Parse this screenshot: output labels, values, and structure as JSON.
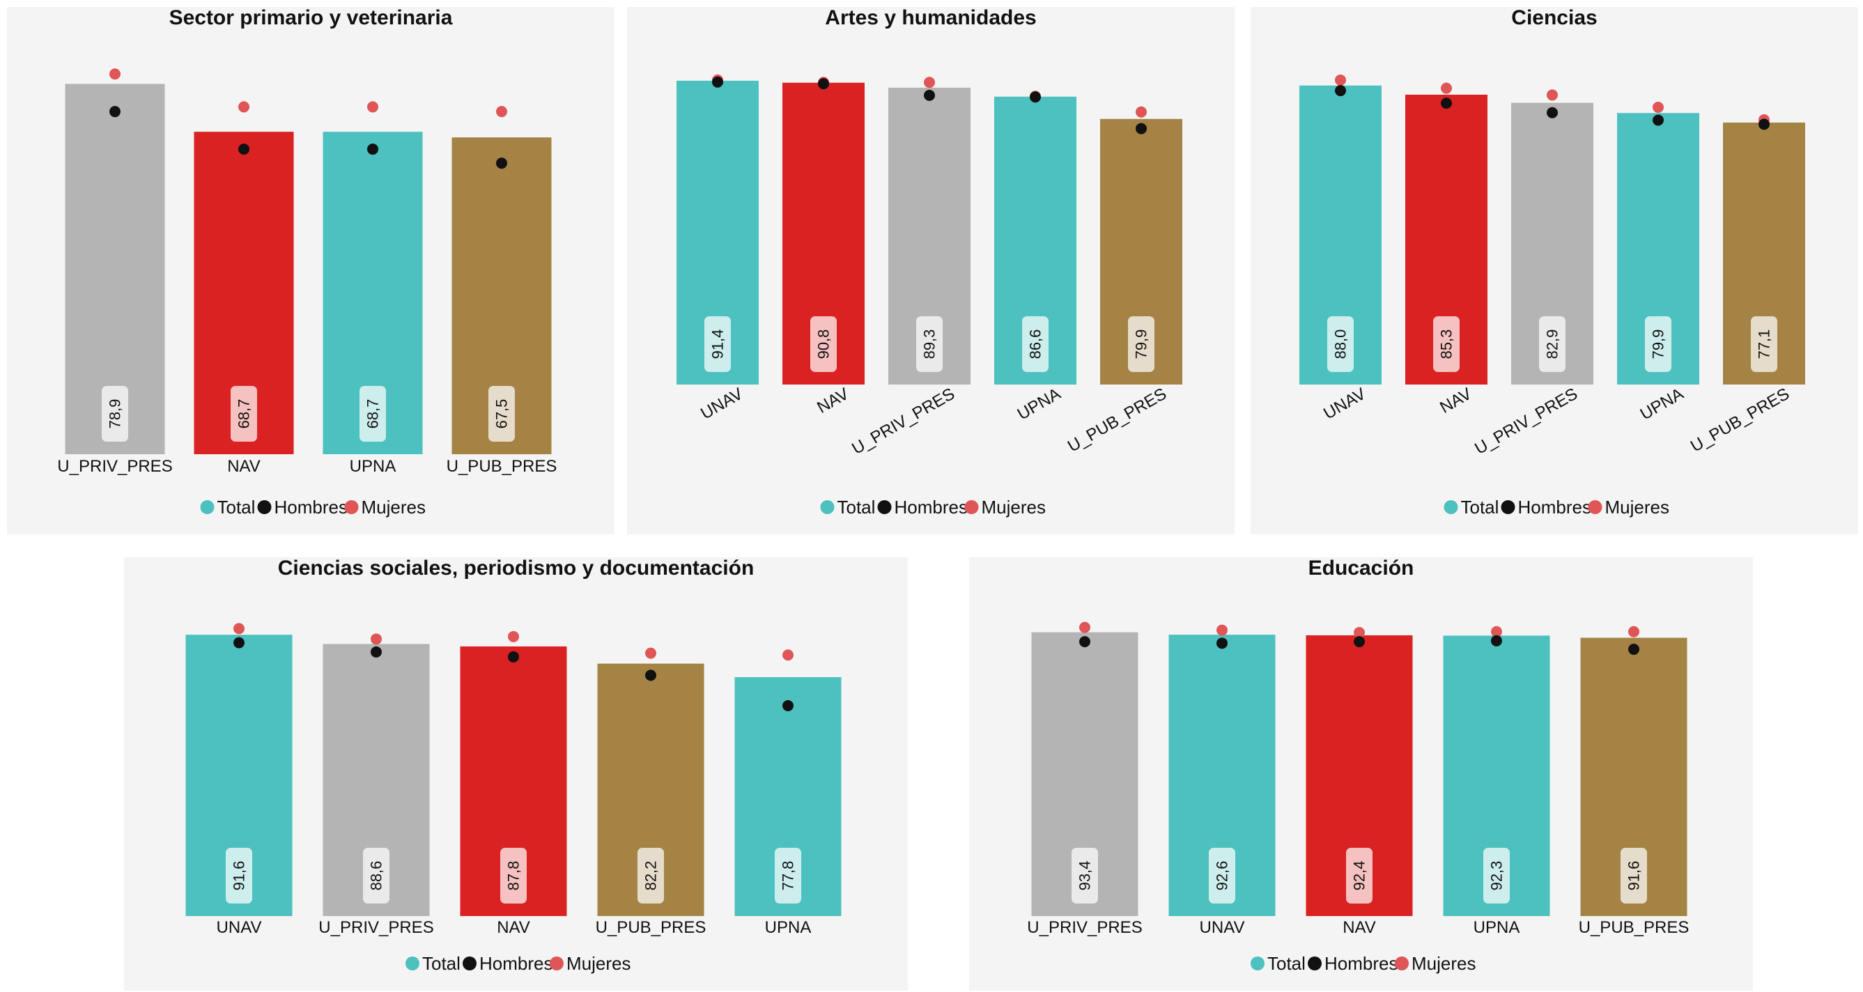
{
  "colors": {
    "panel_bg": "#f4f4f4",
    "teal": "#4dc1bf",
    "red": "#db2222",
    "gray": "#b4b4b4",
    "gold": "#a48344",
    "hombres_dot": "#111111",
    "mujeres_dot": "#e05555"
  },
  "legend": [
    {
      "label": "Total",
      "color": "#4dc1bf"
    },
    {
      "label": "Hombres",
      "color": "#111111"
    },
    {
      "label": "Mujeres",
      "color": "#e05555"
    }
  ],
  "chart_data": [
    {
      "type": "bar",
      "title": "Sector primario y veterinaria",
      "categories": [
        "U_PRIV_PRES",
        "NAV",
        "UPNA",
        "U_PUB_PRES"
      ],
      "bar_colors": [
        "#b4b4b4",
        "#db2222",
        "#4dc1bf",
        "#a48344"
      ],
      "rotated_ticks": false,
      "ylim": [
        0,
        80
      ],
      "series": [
        {
          "name": "Total",
          "values": [
            78.9,
            68.7,
            68.7,
            67.5
          ]
        },
        {
          "name": "Hombres",
          "values": [
            73.0,
            65.0,
            65.0,
            62.0
          ]
        },
        {
          "name": "Mujeres",
          "values": [
            81.0,
            74.0,
            74.0,
            73.0
          ]
        }
      ],
      "value_labels": [
        "78,9",
        "68,7",
        "68,7",
        "67,5"
      ]
    },
    {
      "type": "bar",
      "title": "Artes y humanidades",
      "categories": [
        "UNAV",
        "NAV",
        "U_PRIV_PRES",
        "UPNA",
        "U_PUB_PRES"
      ],
      "bar_colors": [
        "#4dc1bf",
        "#db2222",
        "#b4b4b4",
        "#4dc1bf",
        "#a48344"
      ],
      "rotated_ticks": true,
      "ylim": [
        0,
        92
      ],
      "series": [
        {
          "name": "Total",
          "values": [
            91.4,
            90.8,
            89.3,
            86.6,
            79.9
          ]
        },
        {
          "name": "Hombres",
          "values": [
            91.0,
            90.5,
            87.0,
            86.5,
            77.0
          ]
        },
        {
          "name": "Mujeres",
          "values": [
            91.6,
            90.9,
            90.9,
            86.7,
            82.0
          ]
        }
      ],
      "value_labels": [
        "91,4",
        "90,8",
        "89,3",
        "86,6",
        "79,9"
      ]
    },
    {
      "type": "bar",
      "title": "Ciencias",
      "categories": [
        "UNAV",
        "NAV",
        "U_PRIV_PRES",
        "UPNA",
        "U_PUB_PRES"
      ],
      "bar_colors": [
        "#4dc1bf",
        "#db2222",
        "#b4b4b4",
        "#4dc1bf",
        "#a48344"
      ],
      "rotated_ticks": true,
      "ylim": [
        0,
        90
      ],
      "series": [
        {
          "name": "Total",
          "values": [
            88.0,
            85.3,
            82.9,
            79.9,
            77.1
          ]
        },
        {
          "name": "Hombres",
          "values": [
            86.5,
            82.8,
            80.0,
            77.8,
            76.6
          ]
        },
        {
          "name": "Mujeres",
          "values": [
            89.6,
            87.2,
            85.2,
            81.6,
            77.9
          ]
        }
      ],
      "value_labels": [
        "88,0",
        "85,3",
        "82,9",
        "79,9",
        "77,1"
      ]
    },
    {
      "type": "bar",
      "title": "Ciencias sociales, periodismo y documentación",
      "categories": [
        "UNAV",
        "U_PRIV_PRES",
        "NAV",
        "U_PUB_PRES",
        "UPNA"
      ],
      "bar_colors": [
        "#4dc1bf",
        "#b4b4b4",
        "#db2222",
        "#a48344",
        "#4dc1bf"
      ],
      "rotated_ticks": false,
      "ylim": [
        0,
        93
      ],
      "series": [
        {
          "name": "Total",
          "values": [
            91.6,
            88.6,
            87.8,
            82.2,
            77.8
          ]
        },
        {
          "name": "Hombres",
          "values": [
            89.0,
            86.0,
            84.4,
            78.4,
            68.5
          ]
        },
        {
          "name": "Mujeres",
          "values": [
            93.6,
            90.2,
            91.0,
            85.6,
            85.0
          ]
        }
      ],
      "value_labels": [
        "91,6",
        "88,6",
        "87,8",
        "82,2",
        "77,8"
      ]
    },
    {
      "type": "bar",
      "title": "Educación",
      "categories": [
        "U_PRIV_PRES",
        "UNAV",
        "NAV",
        "UPNA",
        "U_PUB_PRES"
      ],
      "bar_colors": [
        "#b4b4b4",
        "#4dc1bf",
        "#db2222",
        "#4dc1bf",
        "#a48344"
      ],
      "rotated_ticks": false,
      "ylim": [
        0,
        94
      ],
      "series": [
        {
          "name": "Total",
          "values": [
            93.4,
            92.6,
            92.4,
            92.3,
            91.6
          ]
        },
        {
          "name": "Hombres",
          "values": [
            90.3,
            89.8,
            90.3,
            90.6,
            87.8
          ]
        },
        {
          "name": "Mujeres",
          "values": [
            95.0,
            94.1,
            93.3,
            93.6,
            93.6
          ]
        }
      ],
      "value_labels": [
        "93,4",
        "92,6",
        "92,4",
        "92,3",
        "91,6"
      ]
    }
  ]
}
